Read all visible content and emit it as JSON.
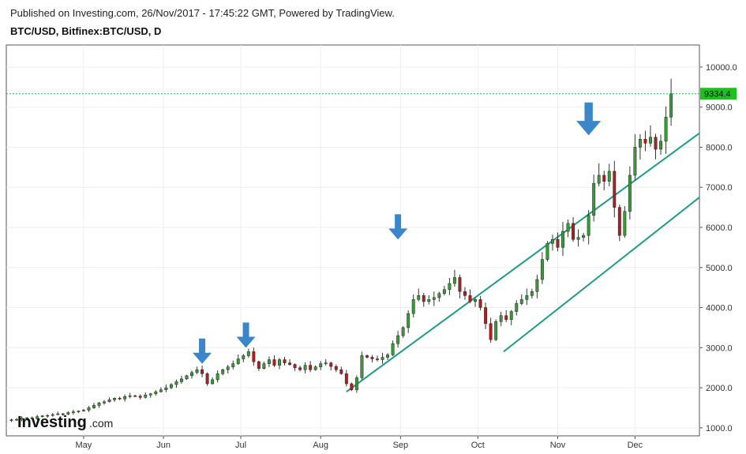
{
  "header": {
    "published": "Published on Investing.com, 26/Nov/2017 - 17:45:22 GMT, Powered by TradingView.",
    "symbol": "BTC/USD, Bitfinex:BTC/USD, D"
  },
  "brand": {
    "name": "Investing",
    "suffix": ".com"
  },
  "colors": {
    "up": "#3a9a3a",
    "down": "#b21e1e",
    "channel": "#1e9b82",
    "arrow": "#3b86c9",
    "last": "#19c319"
  },
  "chart_data": {
    "type": "candlestick",
    "x_tick_labels": [
      "May",
      "Jun",
      "Jul",
      "Aug",
      "Sep",
      "Oct",
      "Nov",
      "Dec"
    ],
    "x_tick_days": [
      92,
      123,
      153,
      184,
      215,
      245,
      276,
      306
    ],
    "y_tick_labels": [
      "1000.0",
      "2000.0",
      "3000.0",
      "4000.0",
      "5000.0",
      "6000.0",
      "7000.0",
      "8000.0",
      "9000.0",
      "10000.0"
    ],
    "y_range": [
      800,
      10550
    ],
    "x_range_days": [
      62,
      331
    ],
    "last_price": 9334.4,
    "last_price_label": "9334.4",
    "channel_lines": [
      {
        "from": [
          194,
          1900
        ],
        "to": [
          331,
          8350
        ]
      },
      {
        "from": [
          255,
          2900
        ],
        "to": [
          331,
          6750
        ]
      }
    ],
    "arrow_days": [
      138,
      155,
      214,
      288
    ],
    "arrow_prices": [
      2400,
      2800,
      5500,
      8100
    ],
    "closes": [
      [
        62,
        1180
      ],
      [
        64,
        1200
      ],
      [
        66,
        1210
      ],
      [
        68,
        1240
      ],
      [
        70,
        1250
      ],
      [
        72,
        1230
      ],
      [
        74,
        1280
      ],
      [
        76,
        1300
      ],
      [
        78,
        1310
      ],
      [
        80,
        1330
      ],
      [
        82,
        1350
      ],
      [
        84,
        1340
      ],
      [
        86,
        1380
      ],
      [
        88,
        1400
      ],
      [
        90,
        1420
      ],
      [
        92,
        1440
      ],
      [
        94,
        1500
      ],
      [
        96,
        1560
      ],
      [
        98,
        1620
      ],
      [
        100,
        1650
      ],
      [
        102,
        1700
      ],
      [
        104,
        1740
      ],
      [
        106,
        1720
      ],
      [
        108,
        1780
      ],
      [
        110,
        1800
      ],
      [
        112,
        1790
      ],
      [
        114,
        1760
      ],
      [
        116,
        1820
      ],
      [
        118,
        1850
      ],
      [
        120,
        1900
      ],
      [
        122,
        1950
      ],
      [
        124,
        2000
      ],
      [
        126,
        2080
      ],
      [
        128,
        2150
      ],
      [
        130,
        2220
      ],
      [
        132,
        2300
      ],
      [
        134,
        2380
      ],
      [
        136,
        2450
      ],
      [
        138,
        2350
      ],
      [
        140,
        2100
      ],
      [
        142,
        2200
      ],
      [
        144,
        2350
      ],
      [
        146,
        2450
      ],
      [
        148,
        2520
      ],
      [
        150,
        2600
      ],
      [
        152,
        2720
      ],
      [
        154,
        2800
      ],
      [
        156,
        2900
      ],
      [
        158,
        2650
      ],
      [
        160,
        2480
      ],
      [
        162,
        2600
      ],
      [
        164,
        2700
      ],
      [
        166,
        2560
      ],
      [
        168,
        2700
      ],
      [
        170,
        2620
      ],
      [
        172,
        2580
      ],
      [
        174,
        2500
      ],
      [
        176,
        2450
      ],
      [
        178,
        2560
      ],
      [
        180,
        2450
      ],
      [
        182,
        2520
      ],
      [
        184,
        2600
      ],
      [
        186,
        2620
      ],
      [
        188,
        2530
      ],
      [
        190,
        2450
      ],
      [
        192,
        2350
      ],
      [
        194,
        2100
      ],
      [
        196,
        1950
      ],
      [
        198,
        2250
      ],
      [
        200,
        2800
      ],
      [
        202,
        2760
      ],
      [
        204,
        2720
      ],
      [
        206,
        2700
      ],
      [
        208,
        2760
      ],
      [
        210,
        2820
      ],
      [
        212,
        3100
      ],
      [
        214,
        3300
      ],
      [
        216,
        3500
      ],
      [
        218,
        3850
      ],
      [
        220,
        4200
      ],
      [
        222,
        4300
      ],
      [
        224,
        4150
      ],
      [
        226,
        4200
      ],
      [
        228,
        4250
      ],
      [
        230,
        4350
      ],
      [
        232,
        4450
      ],
      [
        234,
        4600
      ],
      [
        236,
        4750
      ],
      [
        238,
        4400
      ],
      [
        240,
        4300
      ],
      [
        242,
        4150
      ],
      [
        244,
        4200
      ],
      [
        246,
        4000
      ],
      [
        248,
        3600
      ],
      [
        250,
        3200
      ],
      [
        252,
        3650
      ],
      [
        254,
        3800
      ],
      [
        256,
        3700
      ],
      [
        258,
        3900
      ],
      [
        260,
        4100
      ],
      [
        262,
        4200
      ],
      [
        264,
        4300
      ],
      [
        266,
        4400
      ],
      [
        268,
        4700
      ],
      [
        270,
        5200
      ],
      [
        272,
        5600
      ],
      [
        274,
        5700
      ],
      [
        276,
        5500
      ],
      [
        278,
        5900
      ],
      [
        280,
        6100
      ],
      [
        282,
        5700
      ],
      [
        284,
        5750
      ],
      [
        286,
        5800
      ],
      [
        288,
        6300
      ],
      [
        290,
        7100
      ],
      [
        292,
        7300
      ],
      [
        294,
        7150
      ],
      [
        296,
        7400
      ],
      [
        298,
        6500
      ],
      [
        300,
        5800
      ],
      [
        302,
        6400
      ],
      [
        304,
        7300
      ],
      [
        306,
        8000
      ],
      [
        308,
        8200
      ],
      [
        310,
        8100
      ],
      [
        312,
        8250
      ],
      [
        314,
        7950
      ],
      [
        316,
        8150
      ],
      [
        318,
        8750
      ],
      [
        320,
        9334
      ]
    ]
  }
}
